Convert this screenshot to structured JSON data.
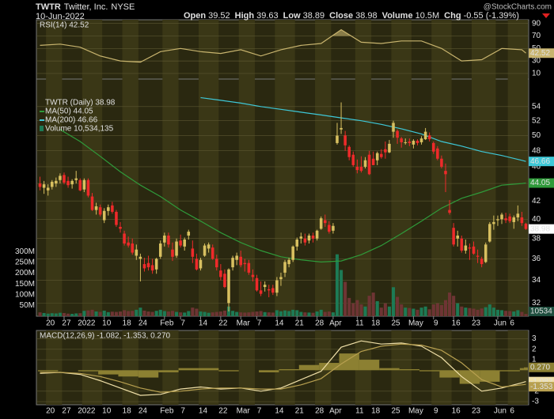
{
  "chart_data": {
    "type": "candlestick",
    "symbol": "TWTR",
    "company": "Twitter, Inc.",
    "exchange": "NYSE",
    "date": "10-Jun-2022",
    "watermark": "@StockCharts.com",
    "stats": [
      "Open",
      "39.52",
      "High",
      "39.63",
      "Low",
      "38.89",
      "Close",
      "38.98",
      "Volume",
      "10.5M",
      "Chg",
      "-0.55 (-1.39%)"
    ],
    "xticks": [
      {
        "value": 2,
        "label": "20"
      },
      {
        "value": 6,
        "label": "27"
      },
      {
        "value": 11,
        "label": "2022"
      },
      {
        "value": 16,
        "label": "10"
      },
      {
        "value": 21,
        "label": "18"
      },
      {
        "value": 25,
        "label": "24"
      },
      {
        "value": 31,
        "label": "Feb"
      },
      {
        "value": 35,
        "label": "7"
      },
      {
        "value": 40,
        "label": "14"
      },
      {
        "value": 45,
        "label": "22"
      },
      {
        "value": 50,
        "label": "Mar"
      },
      {
        "value": 54,
        "label": "7"
      },
      {
        "value": 59,
        "label": "14"
      },
      {
        "value": 64,
        "label": "21"
      },
      {
        "value": 69,
        "label": "28"
      },
      {
        "value": 73,
        "label": "Apr"
      },
      {
        "value": 79,
        "label": "11"
      },
      {
        "value": 83,
        "label": "18"
      },
      {
        "value": 88,
        "label": "25"
      },
      {
        "value": 93,
        "label": "May"
      },
      {
        "value": 98,
        "label": "9"
      },
      {
        "value": 103,
        "label": "16"
      },
      {
        "value": 108,
        "label": "23"
      },
      {
        "value": 114,
        "label": "Jun"
      },
      {
        "value": 117,
        "label": "6"
      }
    ],
    "price": {
      "name": "TWTR (Daily) 38.98",
      "last": "38.98",
      "up_color": "#d8c060",
      "down_color": "#ee2a2a",
      "log_scale": true,
      "ylim": [
        30.9,
        58.1
      ],
      "yticks": [
        32,
        34,
        36,
        38,
        40,
        42,
        44,
        46,
        48,
        50,
        52,
        54
      ],
      "grid": true
    },
    "candles": [
      [
        44.0,
        44.8,
        43.2,
        43.6
      ],
      [
        43.5,
        44.3,
        42.8,
        43.9
      ],
      [
        43.2,
        43.9,
        42.6,
        43.5
      ],
      [
        43.6,
        44.4,
        43.3,
        44.2
      ],
      [
        44.0,
        44.7,
        43.6,
        44.3
      ],
      [
        44.4,
        45.2,
        44.0,
        44.9
      ],
      [
        45.0,
        45.3,
        43.9,
        44.1
      ],
      [
        44.3,
        44.8,
        43.5,
        43.8
      ],
      [
        43.9,
        44.5,
        43.4,
        44.3
      ],
      [
        44.4,
        45.5,
        44.0,
        44.6
      ],
      [
        44.4,
        44.6,
        43.1,
        43.2
      ],
      [
        43.3,
        44.6,
        43.0,
        44.4
      ],
      [
        44.4,
        44.6,
        42.4,
        42.6
      ],
      [
        42.5,
        42.9,
        40.9,
        41.0
      ],
      [
        41.0,
        41.8,
        40.5,
        41.4
      ],
      [
        41.3,
        41.6,
        40.3,
        40.5
      ],
      [
        39.9,
        41.2,
        39.6,
        40.9
      ],
      [
        40.9,
        41.6,
        40.4,
        41.3
      ],
      [
        41.5,
        41.9,
        40.6,
        40.8
      ],
      [
        40.8,
        41.0,
        39.2,
        39.4
      ],
      [
        39.2,
        39.7,
        38.6,
        39.0
      ],
      [
        38.5,
        38.8,
        37.3,
        37.5
      ],
      [
        37.6,
        38.2,
        37.1,
        37.3
      ],
      [
        37.5,
        38.0,
        36.4,
        36.6
      ],
      [
        36.3,
        37.4,
        35.9,
        36.9
      ],
      [
        36.0,
        36.5,
        33.9,
        36.2
      ],
      [
        35.5,
        36.1,
        34.8,
        35.1
      ],
      [
        35.6,
        36.3,
        34.9,
        35.2
      ],
      [
        35.4,
        36.0,
        34.6,
        34.9
      ],
      [
        35.0,
        36.1,
        34.6,
        36.0
      ],
      [
        36.2,
        37.8,
        36.0,
        37.5
      ],
      [
        37.6,
        38.6,
        37.2,
        38.3
      ],
      [
        38.3,
        38.6,
        37.1,
        37.4
      ],
      [
        36.9,
        37.6,
        35.8,
        36.2
      ],
      [
        36.3,
        38.0,
        36.1,
        37.7
      ],
      [
        37.8,
        38.4,
        37.1,
        37.3
      ],
      [
        37.2,
        38.1,
        36.8,
        37.9
      ],
      [
        38.3,
        38.9,
        37.9,
        38.7
      ],
      [
        37.0,
        37.8,
        35.6,
        36.2
      ],
      [
        36.0,
        36.5,
        34.9,
        35.0
      ],
      [
        35.1,
        36.1,
        34.9,
        35.9
      ],
      [
        36.3,
        37.5,
        36.2,
        37.3
      ],
      [
        37.0,
        37.6,
        36.6,
        37.4
      ],
      [
        37.1,
        37.4,
        35.9,
        36.0
      ],
      [
        36.0,
        36.4,
        34.9,
        35.2
      ],
      [
        34.9,
        35.5,
        34.0,
        34.3
      ],
      [
        34.6,
        35.0,
        33.3,
        33.4
      ],
      [
        32.0,
        35.1,
        31.3,
        35.0
      ],
      [
        35.2,
        36.3,
        34.9,
        36.1
      ],
      [
        35.9,
        36.6,
        35.4,
        36.3
      ],
      [
        36.2,
        36.8,
        35.2,
        35.4
      ],
      [
        35.6,
        36.0,
        34.8,
        35.5
      ],
      [
        35.6,
        35.9,
        34.5,
        34.7
      ],
      [
        34.5,
        35.0,
        33.9,
        34.3
      ],
      [
        34.2,
        34.5,
        33.0,
        33.1
      ],
      [
        33.1,
        33.9,
        32.6,
        32.8
      ],
      [
        33.4,
        33.9,
        33.0,
        33.6
      ],
      [
        33.2,
        33.6,
        32.5,
        33.1
      ],
      [
        33.3,
        33.6,
        32.7,
        32.9
      ],
      [
        32.9,
        34.3,
        32.6,
        34.0
      ],
      [
        34.1,
        34.7,
        33.5,
        34.3
      ],
      [
        34.7,
        35.9,
        34.3,
        35.7
      ],
      [
        35.5,
        36.1,
        35.2,
        35.9
      ],
      [
        35.9,
        37.3,
        35.7,
        37.2
      ],
      [
        37.2,
        38.1,
        36.8,
        37.9
      ],
      [
        38.0,
        38.6,
        37.5,
        38.2
      ],
      [
        38.0,
        38.5,
        37.3,
        37.6
      ],
      [
        37.8,
        38.5,
        37.5,
        38.3
      ],
      [
        38.3,
        38.6,
        37.6,
        38.0
      ],
      [
        38.0,
        38.9,
        37.8,
        38.8
      ],
      [
        39.0,
        40.3,
        38.9,
        40.1
      ],
      [
        39.9,
        40.5,
        39.2,
        39.6
      ],
      [
        39.4,
        39.8,
        38.5,
        38.7
      ],
      [
        38.8,
        39.6,
        38.5,
        39.3
      ],
      [
        49.0,
        51.7,
        48.8,
        49.97
      ],
      [
        50.8,
        54.6,
        50.2,
        51.0
      ],
      [
        50.0,
        50.6,
        48.0,
        48.7
      ],
      [
        48.5,
        48.7,
        46.8,
        47.2
      ],
      [
        47.5,
        47.9,
        46.0,
        46.2
      ],
      [
        46.0,
        46.9,
        45.2,
        45.6
      ],
      [
        46.0,
        47.3,
        45.3,
        45.5
      ],
      [
        46.0,
        47.2,
        45.8,
        46.8
      ],
      [
        47.5,
        48.0,
        45.0,
        45.1
      ],
      [
        47.0,
        47.9,
        46.2,
        46.2
      ],
      [
        46.8,
        47.9,
        46.2,
        47.7
      ],
      [
        47.6,
        48.2,
        47.0,
        47.2
      ],
      [
        48.2,
        49.2,
        47.0,
        47.8
      ],
      [
        47.8,
        49.4,
        47.7,
        48.9
      ],
      [
        50.5,
        52.0,
        49.7,
        51.7
      ],
      [
        50.6,
        50.8,
        48.9,
        49.7
      ],
      [
        49.6,
        49.8,
        48.4,
        49.1
      ],
      [
        49.0,
        49.6,
        48.8,
        49.1
      ],
      [
        49.2,
        49.6,
        48.6,
        49.0
      ],
      [
        48.8,
        49.5,
        48.3,
        49.3
      ],
      [
        49.3,
        49.5,
        48.7,
        49.0
      ],
      [
        49.1,
        49.9,
        48.8,
        49.6
      ],
      [
        49.5,
        51.0,
        49.4,
        50.5
      ],
      [
        50.0,
        50.4,
        49.2,
        49.5
      ],
      [
        49.0,
        49.2,
        47.6,
        47.9
      ],
      [
        48.3,
        48.6,
        46.8,
        47.0
      ],
      [
        47.0,
        47.4,
        45.8,
        46.0
      ],
      [
        45.5,
        46.4,
        43.0,
        45.1
      ],
      [
        41.0,
        42.1,
        40.5,
        40.7
      ],
      [
        39.1,
        39.6,
        37.2,
        37.4
      ],
      [
        38.0,
        38.8,
        37.2,
        38.3
      ],
      [
        38.0,
        38.3,
        36.6,
        36.8
      ],
      [
        36.8,
        37.9,
        36.5,
        37.3
      ],
      [
        37.1,
        37.5,
        35.9,
        37.0
      ],
      [
        37.2,
        37.7,
        36.4,
        36.5
      ],
      [
        36.3,
        36.9,
        35.6,
        36.2
      ],
      [
        36.0,
        36.2,
        35.2,
        35.5
      ],
      [
        35.7,
        37.6,
        35.6,
        37.4
      ],
      [
        37.7,
        39.7,
        37.6,
        39.5
      ],
      [
        39.5,
        40.4,
        38.9,
        39.7
      ],
      [
        39.9,
        40.4,
        39.3,
        40.0
      ],
      [
        40.0,
        40.7,
        39.5,
        40.5
      ],
      [
        40.1,
        40.7,
        39.6,
        39.9
      ],
      [
        40.3,
        40.6,
        39.6,
        39.8
      ],
      [
        39.7,
        40.4,
        39.0,
        40.2
      ],
      [
        40.2,
        41.5,
        39.8,
        40.6
      ],
      [
        40.2,
        40.8,
        39.3,
        39.6
      ],
      [
        39.52,
        39.63,
        38.89,
        38.98
      ]
    ],
    "volume": {
      "name": "Volume 10,534,135",
      "last": "10534",
      "up_color": "#1d7a55",
      "down_color": "#6e3434",
      "ylim": [
        0,
        1103
      ],
      "yticks": [
        {
          "value": 50,
          "label": "50M"
        },
        {
          "value": 100,
          "label": "100M"
        },
        {
          "value": 150,
          "label": "150M"
        },
        {
          "value": 200,
          "label": "200M"
        },
        {
          "value": 250,
          "label": "250M"
        },
        {
          "value": 300,
          "label": "300M"
        }
      ],
      "values": [
        18,
        15,
        12,
        14,
        13,
        16,
        15,
        12,
        11,
        13,
        14,
        25,
        27,
        30,
        22,
        20,
        26,
        19,
        21,
        20,
        22,
        28,
        24,
        25,
        30,
        40,
        26,
        22,
        20,
        25,
        30,
        24,
        22,
        25,
        20,
        18,
        17,
        24,
        40,
        35,
        22,
        20,
        16,
        18,
        20,
        22,
        26,
        45,
        25,
        20,
        18,
        17,
        18,
        20,
        22,
        24,
        19,
        18,
        17,
        28,
        23,
        27,
        24,
        30,
        28,
        20,
        18,
        17,
        16,
        22,
        30,
        20,
        22,
        18,
        288,
        215,
        160,
        85,
        60,
        75,
        55,
        45,
        95,
        110,
        70,
        40,
        60,
        45,
        135,
        90,
        55,
        40,
        38,
        35,
        30,
        40,
        45,
        32,
        55,
        60,
        52,
        75,
        110,
        95,
        60,
        45,
        40,
        38,
        35,
        30,
        36,
        42,
        55,
        40,
        30,
        28,
        25,
        24,
        22,
        28,
        20,
        10.534135
      ]
    },
    "line_x": [
      0,
      5,
      10,
      15,
      20,
      25,
      30,
      35,
      40,
      45,
      50,
      55,
      60,
      65,
      70,
      75,
      80,
      85,
      90,
      95,
      100,
      105,
      110,
      115,
      120,
      121
    ],
    "ma": [
      {
        "name": "MA(50) 44.05",
        "last": "44.05",
        "color": "#2f9a3a",
        "values": [
          null,
          50.8,
          49.2,
          47.3,
          45.4,
          43.8,
          42.5,
          41.0,
          39.8,
          38.6,
          37.6,
          36.8,
          36.2,
          35.9,
          35.7,
          35.8,
          36.4,
          37.3,
          38.5,
          39.8,
          41.2,
          42.3,
          43.0,
          43.8,
          44.0,
          44.05
        ]
      },
      {
        "name": "MA(200) 46.66",
        "last": "46.66",
        "color": "#3ec8d8",
        "values": [
          null,
          null,
          null,
          null,
          null,
          null,
          null,
          null,
          55.3,
          54.9,
          54.5,
          54.0,
          53.6,
          53.2,
          52.8,
          52.4,
          52.0,
          51.5,
          50.9,
          50.2,
          49.2,
          48.6,
          47.9,
          47.4,
          46.8,
          46.66
        ]
      }
    ],
    "rsi": {
      "name": "RSI(14) 42.52",
      "last": "42.52",
      "color": "#c8b46e",
      "ylim": [
        1,
        96
      ],
      "yticks": [
        10,
        30,
        50,
        70,
        90
      ],
      "bands": [
        30,
        70
      ],
      "values": [
        55,
        57,
        52,
        38,
        30,
        28,
        45,
        50,
        45,
        42,
        48,
        38,
        48,
        55,
        58,
        80,
        60,
        58,
        62,
        62,
        50,
        30,
        32,
        50,
        48,
        42.52
      ]
    },
    "macd": {
      "name": "MACD(12,26,9) -1.082, -1.353, 0.270",
      "ylim": [
        -3.3,
        3.8
      ],
      "yticks": [
        -3,
        -2,
        1,
        2,
        3
      ],
      "series": [
        {
          "last": "-1.082",
          "color": "#f0e0a8",
          "values": [
            -0.3,
            -0.2,
            -0.4,
            -1.0,
            -1.7,
            -2.4,
            -2.3,
            -1.8,
            -1.6,
            -1.8,
            -1.7,
            -2.0,
            -1.7,
            -0.9,
            -0.1,
            2.2,
            2.8,
            2.5,
            2.6,
            2.3,
            1.2,
            -0.6,
            -2.0,
            -1.7,
            -1.2,
            -1.082
          ]
        },
        {
          "last": "-1.353",
          "color": "#b8a050",
          "values": [
            -0.2,
            -0.2,
            -0.3,
            -0.6,
            -1.1,
            -1.7,
            -2.1,
            -2.0,
            -1.8,
            -1.7,
            -1.7,
            -1.8,
            -1.8,
            -1.4,
            -0.8,
            0.6,
            1.8,
            2.3,
            2.5,
            2.4,
            1.9,
            0.7,
            -0.9,
            -1.6,
            -1.4,
            -1.353
          ]
        }
      ],
      "histogram": {
        "last": "0.270",
        "color": "#8c8032",
        "values": [
          -0.1,
          0,
          -0.1,
          -0.4,
          -0.6,
          -0.7,
          -0.2,
          0.2,
          0.2,
          -0.1,
          0,
          -0.2,
          0.1,
          0.5,
          0.7,
          1.6,
          1.0,
          0.2,
          0.1,
          -0.1,
          -0.7,
          -1.3,
          -1.1,
          -0.1,
          0.2,
          0.27
        ]
      }
    }
  }
}
